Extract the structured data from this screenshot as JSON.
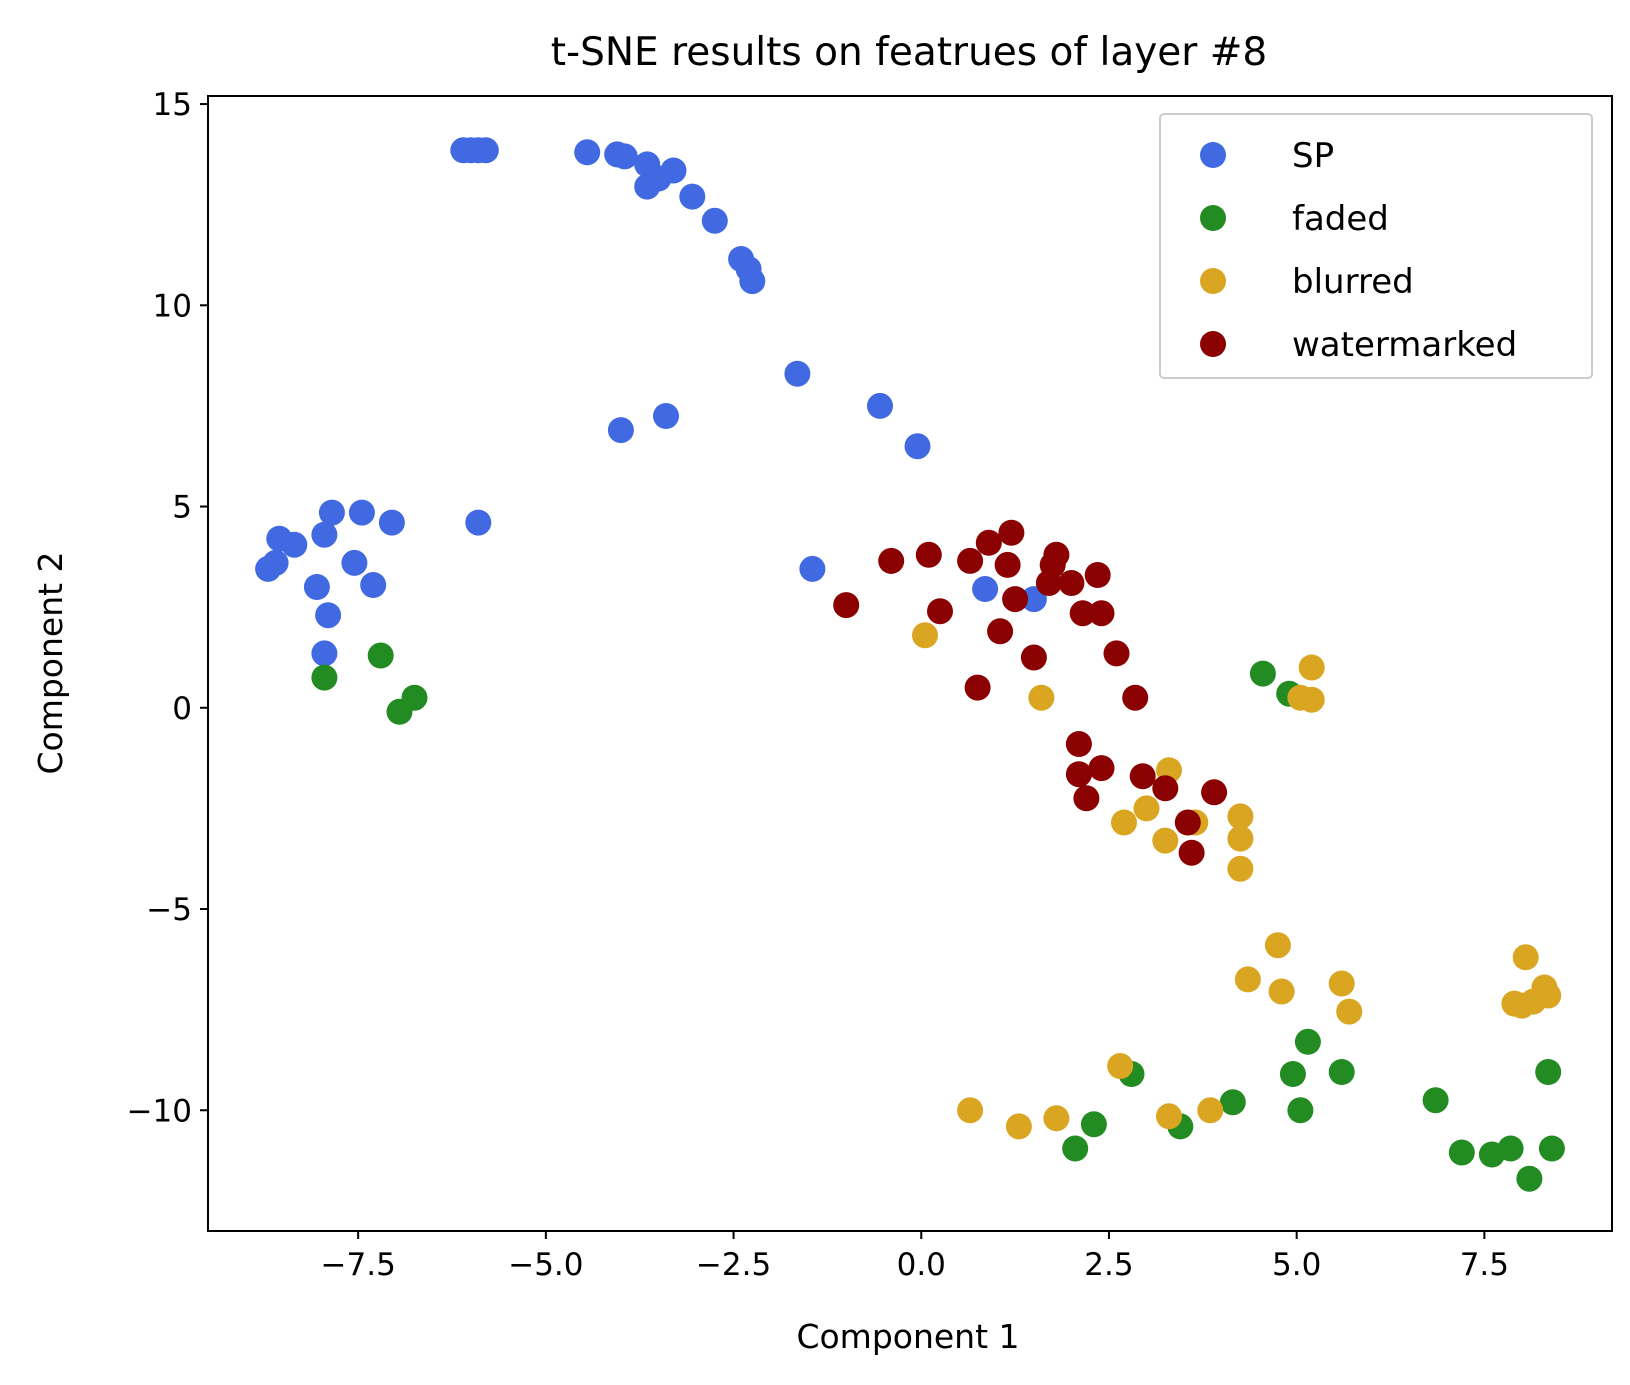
{
  "chart_data": {
    "type": "scatter",
    "title": "t-SNE results on featrues of layer #8",
    "xlabel": "Component 1",
    "ylabel": "Component 2",
    "xlim": [
      -9.5,
      9.2
    ],
    "ylim": [
      -13.0,
      15.2
    ],
    "xticks": [
      -7.5,
      -5.0,
      -2.5,
      0.0,
      2.5,
      5.0,
      7.5
    ],
    "xtick_labels": [
      "−7.5",
      "−5.0",
      "−2.5",
      "0.0",
      "2.5",
      "5.0",
      "7.5"
    ],
    "yticks": [
      15,
      10,
      5,
      0,
      -5,
      -10
    ],
    "ytick_labels": [
      "15",
      "10",
      "5",
      "0",
      "−5",
      "−10"
    ],
    "grid": false,
    "legend_position": "top-right",
    "series": [
      {
        "name": "SP",
        "color": "#4169e1",
        "points": [
          [
            -6.1,
            13.85
          ],
          [
            -6.0,
            13.85
          ],
          [
            -5.9,
            13.85
          ],
          [
            -5.8,
            13.85
          ],
          [
            -4.45,
            13.8
          ],
          [
            -4.05,
            13.75
          ],
          [
            -3.95,
            13.7
          ],
          [
            -3.65,
            13.5
          ],
          [
            -3.5,
            13.15
          ],
          [
            -3.65,
            12.95
          ],
          [
            -3.3,
            13.35
          ],
          [
            -3.05,
            12.7
          ],
          [
            -2.75,
            12.1
          ],
          [
            -2.4,
            11.15
          ],
          [
            -2.3,
            10.9
          ],
          [
            -2.25,
            10.6
          ],
          [
            -1.65,
            8.3
          ],
          [
            -0.55,
            7.5
          ],
          [
            -0.05,
            6.5
          ],
          [
            -4.0,
            6.9
          ],
          [
            -3.4,
            7.25
          ],
          [
            -5.9,
            4.6
          ],
          [
            -7.05,
            4.6
          ],
          [
            -7.45,
            4.85
          ],
          [
            -7.85,
            4.85
          ],
          [
            -8.55,
            4.2
          ],
          [
            -8.35,
            4.05
          ],
          [
            -7.95,
            4.3
          ],
          [
            -8.7,
            3.45
          ],
          [
            -8.6,
            3.6
          ],
          [
            -7.55,
            3.6
          ],
          [
            -8.05,
            3.0
          ],
          [
            -7.3,
            3.05
          ],
          [
            -7.9,
            2.3
          ],
          [
            -7.95,
            1.35
          ],
          [
            -1.45,
            3.45
          ],
          [
            0.85,
            2.95
          ],
          [
            1.5,
            2.7
          ]
        ]
      },
      {
        "name": "faded",
        "color": "#228b22",
        "points": [
          [
            -7.95,
            0.75
          ],
          [
            -7.2,
            1.3
          ],
          [
            -6.95,
            -0.1
          ],
          [
            -6.75,
            0.25
          ],
          [
            4.55,
            0.85
          ],
          [
            4.9,
            0.35
          ],
          [
            2.8,
            -9.1
          ],
          [
            2.05,
            -10.95
          ],
          [
            2.3,
            -10.35
          ],
          [
            3.45,
            -10.4
          ],
          [
            4.15,
            -9.8
          ],
          [
            4.95,
            -9.1
          ],
          [
            5.05,
            -10.0
          ],
          [
            5.15,
            -8.3
          ],
          [
            5.6,
            -9.05
          ],
          [
            6.85,
            -9.75
          ],
          [
            7.2,
            -11.05
          ],
          [
            7.6,
            -11.1
          ],
          [
            7.85,
            -10.95
          ],
          [
            8.1,
            -11.7
          ],
          [
            8.35,
            -9.05
          ],
          [
            8.4,
            -10.95
          ]
        ]
      },
      {
        "name": "blurred",
        "color": "#daa520",
        "points": [
          [
            0.05,
            1.8
          ],
          [
            1.6,
            0.25
          ],
          [
            5.2,
            1.0
          ],
          [
            5.05,
            0.25
          ],
          [
            5.2,
            0.2
          ],
          [
            3.3,
            -1.55
          ],
          [
            3.65,
            -2.85
          ],
          [
            3.0,
            -2.5
          ],
          [
            2.7,
            -2.85
          ],
          [
            3.25,
            -3.3
          ],
          [
            4.25,
            -2.7
          ],
          [
            4.25,
            -3.25
          ],
          [
            4.25,
            -4.0
          ],
          [
            4.75,
            -5.9
          ],
          [
            4.35,
            -6.75
          ],
          [
            4.8,
            -7.05
          ],
          [
            5.6,
            -6.85
          ],
          [
            5.7,
            -7.55
          ],
          [
            8.05,
            -6.2
          ],
          [
            7.9,
            -7.35
          ],
          [
            8.0,
            -7.4
          ],
          [
            8.15,
            -7.3
          ],
          [
            8.3,
            -6.95
          ],
          [
            8.35,
            -7.15
          ],
          [
            2.65,
            -8.9
          ],
          [
            0.65,
            -10.0
          ],
          [
            1.3,
            -10.4
          ],
          [
            1.8,
            -10.2
          ],
          [
            3.3,
            -10.15
          ],
          [
            3.85,
            -10.0
          ]
        ]
      },
      {
        "name": "watermarked",
        "color": "#8b0000",
        "points": [
          [
            -1.0,
            2.55
          ],
          [
            -0.4,
            3.65
          ],
          [
            0.1,
            3.8
          ],
          [
            0.25,
            2.4
          ],
          [
            0.65,
            3.65
          ],
          [
            0.9,
            4.1
          ],
          [
            1.2,
            4.35
          ],
          [
            1.15,
            3.55
          ],
          [
            1.05,
            1.9
          ],
          [
            1.25,
            2.7
          ],
          [
            0.75,
            0.5
          ],
          [
            1.5,
            1.25
          ],
          [
            1.8,
            3.8
          ],
          [
            1.75,
            3.55
          ],
          [
            1.7,
            3.1
          ],
          [
            2.0,
            3.1
          ],
          [
            2.35,
            3.3
          ],
          [
            2.15,
            2.35
          ],
          [
            2.4,
            2.35
          ],
          [
            2.6,
            1.35
          ],
          [
            2.85,
            0.25
          ],
          [
            2.1,
            -0.9
          ],
          [
            2.1,
            -1.65
          ],
          [
            2.4,
            -1.5
          ],
          [
            2.2,
            -2.25
          ],
          [
            2.95,
            -1.7
          ],
          [
            3.25,
            -2.0
          ],
          [
            3.55,
            -2.85
          ],
          [
            3.6,
            -3.6
          ],
          [
            3.9,
            -2.1
          ]
        ]
      }
    ]
  }
}
